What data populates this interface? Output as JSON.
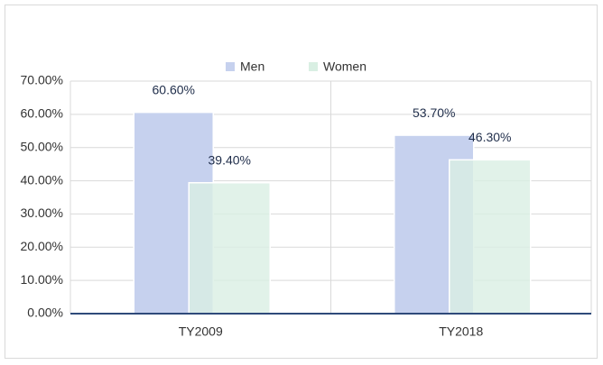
{
  "chart_data": {
    "type": "bar",
    "categories": [
      "TY2009",
      "TY2018"
    ],
    "series": [
      {
        "name": "Men",
        "color": "#c6d1ee",
        "values": [
          60.6,
          53.7
        ],
        "value_labels": [
          "60.60%",
          "53.70%"
        ]
      },
      {
        "name": "Women",
        "color": "#d9efe3",
        "values": [
          39.4,
          46.3
        ],
        "value_labels": [
          "39.40%",
          "46.30%"
        ]
      }
    ],
    "ylim": [
      0,
      70
    ],
    "yticks": [
      {
        "value": 0,
        "label": "0.00%"
      },
      {
        "value": 10,
        "label": "10.00%"
      },
      {
        "value": 20,
        "label": "20.00%"
      },
      {
        "value": 30,
        "label": "30.00%"
      },
      {
        "value": 40,
        "label": "40.00%"
      },
      {
        "value": 50,
        "label": "50.00%"
      },
      {
        "value": 60,
        "label": "60.00%"
      },
      {
        "value": 70,
        "label": "70.00%"
      }
    ],
    "grid": true,
    "legend": "top"
  }
}
